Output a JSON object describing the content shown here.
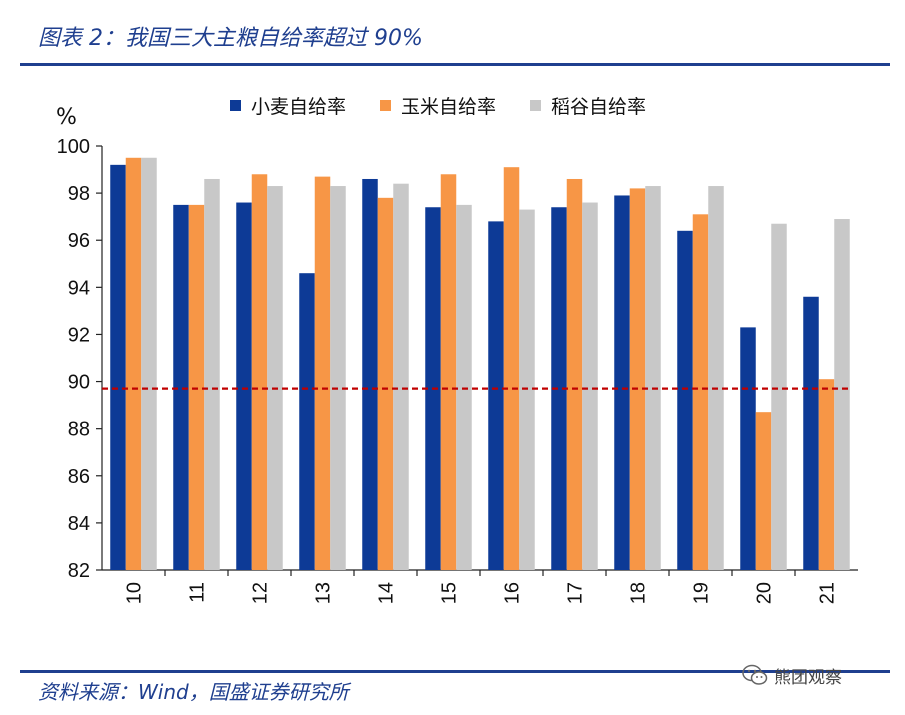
{
  "figure_title": "图表 2：我国三大主粮自给率超过 90%",
  "source": "资料来源：Wind，国盛证券研究所",
  "watermark": {
    "text": "熊团观察",
    "icon": "wechat-icon"
  },
  "chart_data": {
    "type": "bar",
    "ylabel": "%",
    "categories": [
      "10",
      "11",
      "12",
      "13",
      "14",
      "15",
      "16",
      "17",
      "18",
      "19",
      "20",
      "21"
    ],
    "ylim": [
      82,
      100
    ],
    "yticks": [
      82,
      84,
      86,
      88,
      90,
      92,
      94,
      96,
      98,
      100
    ],
    "reference_line": {
      "value": 89.7,
      "style": "dashed",
      "color": "#c00000"
    },
    "legend_position": "top-center",
    "grid": false,
    "series": [
      {
        "name": "小麦自给率",
        "color": "#0d3a96",
        "values": [
          99.2,
          97.5,
          97.6,
          94.6,
          98.6,
          97.4,
          96.8,
          97.4,
          97.9,
          96.4,
          92.3,
          93.6
        ]
      },
      {
        "name": "玉米自给率",
        "color": "#f79646",
        "values": [
          99.5,
          97.5,
          98.8,
          98.7,
          97.8,
          98.8,
          99.1,
          98.6,
          98.2,
          97.1,
          88.7,
          90.1
        ]
      },
      {
        "name": "稻谷自给率",
        "color": "#c8c8c8",
        "values": [
          99.5,
          98.6,
          98.3,
          98.3,
          98.4,
          97.5,
          97.3,
          97.6,
          98.3,
          98.3,
          96.7,
          96.9
        ]
      }
    ]
  }
}
